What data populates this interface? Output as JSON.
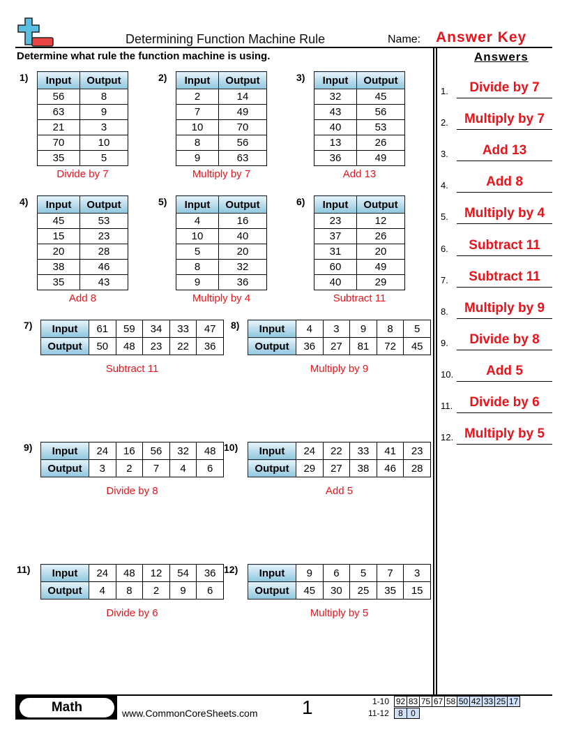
{
  "header": {
    "title": "Determining Function Machine Rule",
    "name_label": "Name:",
    "name_value": "Answer Key",
    "logo": "plus-minus-logo"
  },
  "instructions": "Determine what rule the function machine is using.",
  "labels": {
    "input": "Input",
    "output": "Output"
  },
  "problems": [
    {
      "num": "1)",
      "inputs": [
        "56",
        "63",
        "21",
        "70",
        "35"
      ],
      "outputs": [
        "8",
        "9",
        "3",
        "10",
        "5"
      ],
      "answer": "Divide by 7"
    },
    {
      "num": "2)",
      "inputs": [
        "2",
        "7",
        "10",
        "8",
        "9"
      ],
      "outputs": [
        "14",
        "49",
        "70",
        "56",
        "63"
      ],
      "answer": "Multiply by 7"
    },
    {
      "num": "3)",
      "inputs": [
        "32",
        "43",
        "40",
        "13",
        "36"
      ],
      "outputs": [
        "45",
        "56",
        "53",
        "26",
        "49"
      ],
      "answer": "Add 13"
    },
    {
      "num": "4)",
      "inputs": [
        "45",
        "15",
        "20",
        "38",
        "35"
      ],
      "outputs": [
        "53",
        "23",
        "28",
        "46",
        "43"
      ],
      "answer": "Add 8"
    },
    {
      "num": "5)",
      "inputs": [
        "4",
        "10",
        "5",
        "8",
        "9"
      ],
      "outputs": [
        "16",
        "40",
        "20",
        "32",
        "36"
      ],
      "answer": "Multiply by 4"
    },
    {
      "num": "6)",
      "inputs": [
        "23",
        "37",
        "31",
        "60",
        "40"
      ],
      "outputs": [
        "12",
        "26",
        "20",
        "49",
        "29"
      ],
      "answer": "Subtract 11"
    },
    {
      "num": "7)",
      "inputs": [
        "61",
        "59",
        "34",
        "33",
        "47"
      ],
      "outputs": [
        "50",
        "48",
        "23",
        "22",
        "36"
      ],
      "answer": "Subtract 11"
    },
    {
      "num": "8)",
      "inputs": [
        "4",
        "3",
        "9",
        "8",
        "5"
      ],
      "outputs": [
        "36",
        "27",
        "81",
        "72",
        "45"
      ],
      "answer": "Multiply by 9"
    },
    {
      "num": "9)",
      "inputs": [
        "24",
        "16",
        "56",
        "32",
        "48"
      ],
      "outputs": [
        "3",
        "2",
        "7",
        "4",
        "6"
      ],
      "answer": "Divide by 8"
    },
    {
      "num": "10)",
      "inputs": [
        "24",
        "22",
        "33",
        "41",
        "23"
      ],
      "outputs": [
        "29",
        "27",
        "38",
        "46",
        "28"
      ],
      "answer": "Add 5"
    },
    {
      "num": "11)",
      "inputs": [
        "24",
        "48",
        "12",
        "54",
        "36"
      ],
      "outputs": [
        "4",
        "8",
        "2",
        "9",
        "6"
      ],
      "answer": "Divide by 6"
    },
    {
      "num": "12)",
      "inputs": [
        "9",
        "6",
        "5",
        "7",
        "3"
      ],
      "outputs": [
        "45",
        "30",
        "25",
        "35",
        "15"
      ],
      "answer": "Multiply by 5"
    }
  ],
  "answers": {
    "heading": "Answers",
    "items": [
      {
        "num": "1.",
        "text": "Divide by 7"
      },
      {
        "num": "2.",
        "text": "Multiply by 7"
      },
      {
        "num": "3.",
        "text": "Add 13"
      },
      {
        "num": "4.",
        "text": "Add 8"
      },
      {
        "num": "5.",
        "text": "Multiply by 4"
      },
      {
        "num": "6.",
        "text": "Subtract 11"
      },
      {
        "num": "7.",
        "text": "Subtract 11"
      },
      {
        "num": "8.",
        "text": "Multiply by 9"
      },
      {
        "num": "9.",
        "text": "Divide by 8"
      },
      {
        "num": "10.",
        "text": "Add 5"
      },
      {
        "num": "11.",
        "text": "Divide by 6"
      },
      {
        "num": "12.",
        "text": "Multiply by 5"
      }
    ]
  },
  "footer": {
    "subject": "Math",
    "site": "www.CommonCoreSheets.com",
    "page": "1",
    "score_rows": [
      {
        "label": "1-10",
        "scores": [
          "92",
          "83",
          "75",
          "67",
          "58",
          "50",
          "42",
          "33",
          "25",
          "17"
        ],
        "highlight_from": 5
      },
      {
        "label": "11-12",
        "scores": [
          "8",
          "0"
        ],
        "highlight_from": 0
      }
    ]
  },
  "colors": {
    "answer": "#e8141c",
    "header_cell": "#8fc6df",
    "score_highlight": "#cfe0f7"
  }
}
